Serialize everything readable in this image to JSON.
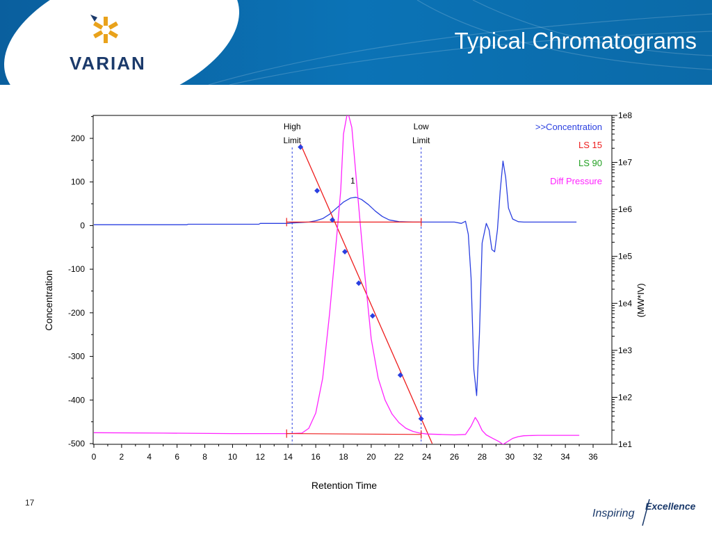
{
  "slide": {
    "title": "Typical Chromatograms",
    "brand": "VARIAN",
    "page_number": "17",
    "footer_brand": [
      "Inspiring",
      "Excellence"
    ]
  },
  "colors": {
    "header_blue": "#0b6fb0",
    "concentration": "#2a3fe0",
    "ls15": "#ee1c1c",
    "ls90": "#22a022",
    "diff_pressure": "#ff22ff",
    "brand_navy": "#1b3a6b",
    "logo_gold": "#e9a21b"
  },
  "chart_data": {
    "type": "line",
    "xlabel": "Retention Time",
    "ylabel": "Concentration",
    "y2label": "(MW*IV)",
    "xlim": [
      0,
      37
    ],
    "ylim": [
      -500,
      260
    ],
    "y2lim_log10": [
      1,
      8
    ],
    "x_ticks": [
      0,
      2,
      4,
      6,
      8,
      10,
      12,
      14,
      16,
      18,
      20,
      22,
      24,
      26,
      28,
      30,
      32,
      34,
      36
    ],
    "y_ticks": [
      200,
      100,
      0,
      -100,
      -200,
      -300,
      -400,
      -500
    ],
    "y2_ticks": [
      "1e8",
      "1e7",
      "1e6",
      "1e5",
      "1e4",
      "1e3",
      "1e2",
      "1e1"
    ],
    "legend_position": "top-right",
    "legend": [
      {
        "label": ">>Concentration",
        "color": "#2a3fe0"
      },
      {
        "label": "LS 15",
        "color": "#ee1c1c"
      },
      {
        "label": "LS 90",
        "color": "#22a022"
      },
      {
        "label": "Diff Pressure",
        "color": "#ff22ff"
      }
    ],
    "limits": [
      {
        "line1": "High",
        "line2": "Limit",
        "x": 14.3
      },
      {
        "line1": "Low",
        "line2": "Limit",
        "x": 23.6
      }
    ],
    "peak_label": {
      "text": "1",
      "x": 18.5,
      "y": 96
    },
    "baselines": [
      {
        "x": [
          13.9,
          23.6
        ],
        "y": [
          8,
          8
        ],
        "color": "#ee1c1c"
      },
      {
        "x": [
          13.9,
          23.6
        ],
        "y": [
          -477,
          -479
        ],
        "color": "#ee1c1c"
      }
    ],
    "series": [
      {
        "name": ">>Concentration",
        "color": "#2a3fe0",
        "x": [
          0,
          6.7,
          6.8,
          11.9,
          12.0,
          14.0,
          14.3,
          15.5,
          16.0,
          16.5,
          17.0,
          17.5,
          18.0,
          18.5,
          18.9,
          19.3,
          19.8,
          20.3,
          20.8,
          21.3,
          22.0,
          23.0,
          23.6,
          26.0,
          26.5,
          26.8,
          27.0,
          27.2,
          27.4,
          27.6,
          27.8,
          28.0,
          28.3,
          28.5,
          28.7,
          28.9,
          29.1,
          29.3,
          29.5,
          29.7,
          29.9,
          30.2,
          30.6,
          31.0,
          32.0,
          33.0,
          34.0,
          34.8
        ],
        "y": [
          2,
          2,
          3,
          3,
          5,
          5,
          6,
          8,
          11,
          16,
          26,
          40,
          54,
          63,
          65,
          60,
          48,
          33,
          21,
          13,
          9,
          8,
          8,
          8,
          5,
          10,
          -20,
          -120,
          -330,
          -390,
          -250,
          -40,
          5,
          -10,
          -55,
          -60,
          -10,
          80,
          148,
          110,
          40,
          15,
          9,
          8,
          8,
          8,
          8,
          8
        ]
      },
      {
        "name": "LS 15",
        "color": "#ee1c1c",
        "x": [
          14.9,
          24.4
        ],
        "y": [
          187,
          -500
        ]
      },
      {
        "name": "LS 15 calibration points",
        "color": "#2a3fe0",
        "x": [
          14.9,
          16.1,
          17.2,
          18.1,
          19.1,
          20.1,
          22.1,
          23.6
        ],
        "y": [
          180,
          80,
          13,
          -60,
          -132,
          -207,
          -343,
          -443
        ]
      },
      {
        "name": "Diff Pressure",
        "color": "#ff22ff",
        "x": [
          0,
          5,
          10,
          12,
          14,
          15.0,
          15.5,
          16.0,
          16.5,
          17.0,
          17.5,
          17.8,
          18.0,
          18.3,
          18.6,
          19.0,
          19.5,
          20.0,
          20.5,
          21.0,
          21.5,
          22.0,
          22.5,
          23.0,
          23.5,
          24.0,
          25.0,
          26.0,
          26.8,
          27.2,
          27.5,
          27.7,
          28.0,
          28.3,
          28.7,
          29.2,
          29.5,
          29.8,
          30.2,
          30.6,
          31.0,
          32.0,
          33.0,
          34.0,
          35.0
        ],
        "y": [
          -475,
          -476,
          -477,
          -477,
          -477,
          -476,
          -465,
          -430,
          -350,
          -200,
          -30,
          80,
          210,
          262,
          225,
          80,
          -100,
          -260,
          -350,
          -400,
          -432,
          -452,
          -465,
          -472,
          -476,
          -478,
          -479,
          -480,
          -479,
          -460,
          -440,
          -450,
          -470,
          -480,
          -487,
          -495,
          -502,
          -496,
          -488,
          -484,
          -482,
          -481,
          -481,
          -481,
          -481
        ]
      }
    ]
  }
}
